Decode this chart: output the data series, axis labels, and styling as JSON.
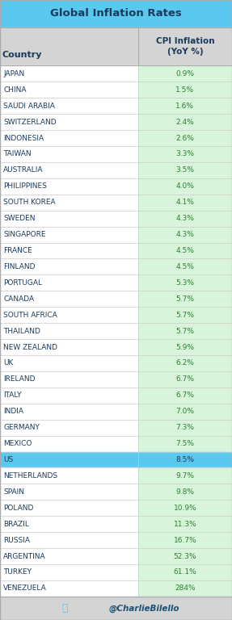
{
  "title": "Global Inflation Rates",
  "col1_header": "Country",
  "col2_header": "CPI Inflation\n(YoY %)",
  "countries": [
    "JAPAN",
    "CHINA",
    "SAUDI ARABIA",
    "SWITZERLAND",
    "INDONESIA",
    "TAIWAN",
    "AUSTRALIA",
    "PHILIPPINES",
    "SOUTH KOREA",
    "SWEDEN",
    "SINGAPORE",
    "FRANCE",
    "FINLAND",
    "PORTUGAL",
    "CANADA",
    "SOUTH AFRICA",
    "THAILAND",
    "NEW ZEALAND",
    "UK",
    "IRELAND",
    "ITALY",
    "INDIA",
    "GERMANY",
    "MEXICO",
    "US",
    "NETHERLANDS",
    "SPAIN",
    "POLAND",
    "BRAZIL",
    "RUSSIA",
    "ARGENTINA",
    "TURKEY",
    "VENEZUELA"
  ],
  "values": [
    "0.9%",
    "1.5%",
    "1.6%",
    "2.4%",
    "2.6%",
    "3.3%",
    "3.5%",
    "4.0%",
    "4.1%",
    "4.3%",
    "4.3%",
    "4.5%",
    "4.5%",
    "5.3%",
    "5.7%",
    "5.7%",
    "5.7%",
    "5.9%",
    "6.2%",
    "6.7%",
    "6.7%",
    "7.0%",
    "7.3%",
    "7.5%",
    "8.5%",
    "9.7%",
    "9.8%",
    "10.9%",
    "11.3%",
    "16.7%",
    "52.3%",
    "61.1%",
    "284%"
  ],
  "highlight_country": "US",
  "highlight_country_bg": "#5bc8f0",
  "title_bg": "#5bc8f0",
  "title_text_color": "#1a3a5c",
  "header_bg": "#d4d4d4",
  "header_text_color": "#1a3a5c",
  "row_left_bg": "#ffffff",
  "row_right_bg": "#d8f5dc",
  "row_text_color": "#1a3a5c",
  "value_text_color": "#2e7d32",
  "footer_bg": "#d4d4d4",
  "footer_text": "@CharlieBilello",
  "footer_text_color": "#1a5276",
  "twitter_color": "#5bc8f0",
  "col_split": 0.595,
  "border_color": "#aaaaaa",
  "row_border_color": "#cccccc"
}
